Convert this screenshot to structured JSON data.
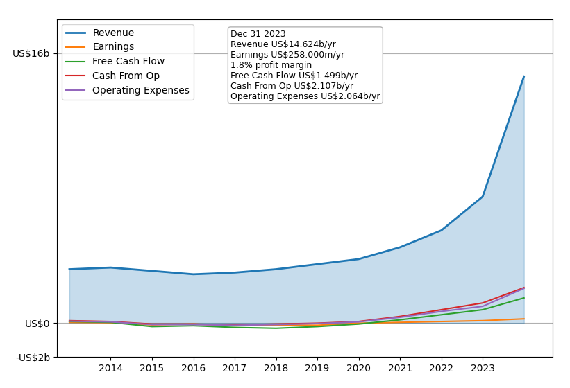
{
  "chart_data": {
    "type": "line",
    "x": [
      2013,
      2014,
      2015,
      2016,
      2017,
      2018,
      2019,
      2020,
      2021,
      2022,
      2023,
      2024
    ],
    "series": [
      {
        "name": "Revenue",
        "type": "area",
        "values": [
          3200000000.0,
          3300000000.0,
          3100000000.0,
          2900000000.0,
          3000000000.0,
          3200000000.0,
          3500000000.0,
          3800000000.0,
          4500000000.0,
          5500000000.0,
          7500000000.0,
          14624000000.0
        ]
      },
      {
        "name": "Earnings",
        "type": "line",
        "values": [
          50000000.0,
          30000000.0,
          -100000000.0,
          -50000000.0,
          -150000000.0,
          -100000000.0,
          -120000000.0,
          0.0,
          50000000.0,
          100000000.0,
          150000000.0,
          258000000.0
        ]
      },
      {
        "name": "Free Cash Flow",
        "type": "line",
        "values": [
          100000000.0,
          50000000.0,
          -200000000.0,
          -150000000.0,
          -250000000.0,
          -300000000.0,
          -200000000.0,
          -50000000.0,
          200000000.0,
          500000000.0,
          800000000.0,
          1499000000.0
        ]
      },
      {
        "name": "Cash From Op",
        "type": "line",
        "values": [
          150000000.0,
          100000000.0,
          -50000000.0,
          -50000000.0,
          -100000000.0,
          -50000000.0,
          0.0,
          100000000.0,
          400000000.0,
          800000000.0,
          1200000000.0,
          2107000000.0
        ]
      },
      {
        "name": "Operating Expenses",
        "type": "line",
        "values": [
          120000000.0,
          80000000.0,
          -80000000.0,
          -80000000.0,
          -120000000.0,
          -80000000.0,
          -20000000.0,
          80000000.0,
          350000000.0,
          700000000.0,
          1000000000.0,
          2064000000.0
        ]
      }
    ],
    "xlim": [
      2012.7,
      2024.7
    ],
    "xticks": [
      2014,
      2015,
      2016,
      2017,
      2018,
      2019,
      2020,
      2021,
      2022,
      2023
    ],
    "ylim": [
      -2000000000.0,
      18000000000.0
    ],
    "yticks": [
      {
        "value": -2000000000.0,
        "label": "-US$2b"
      },
      {
        "value": 0,
        "label": "US$0"
      },
      {
        "value": 16000000000.0,
        "label": "US$16b"
      }
    ],
    "grid": true,
    "legend": "upper left",
    "annotations": [
      "Dec 31 2023",
      "Revenue US$14.624b/yr",
      "Earnings US$258.000m/yr",
      "1.8% profit margin",
      "Free Cash Flow US$1.499b/yr",
      "Cash From Op US$2.107b/yr",
      "Operating Expenses US$2.064b/yr"
    ]
  }
}
